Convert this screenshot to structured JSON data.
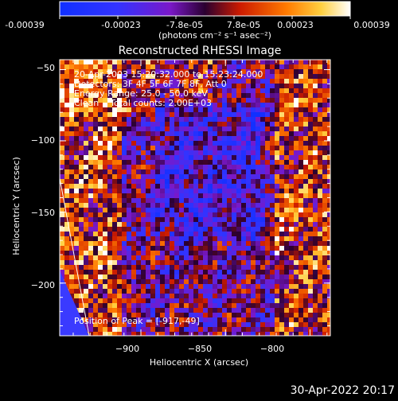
{
  "colorbar": {
    "tick_labels": [
      "-0.00039",
      "-0.00023",
      "-7.8e-05",
      "7.8e-05",
      "0.00023",
      "0.00039"
    ],
    "units_label": "(photons cm⁻² s⁻¹ asec⁻²)",
    "range": [
      -0.00039,
      0.00039
    ]
  },
  "chart_data": {
    "type": "heatmap",
    "title": "Reconstructed RHESSI Image",
    "xlabel": "Heliocentric X (arcsec)",
    "ylabel": "Heliocentric Y (arcsec)",
    "xlim": [
      -948,
      -788
    ],
    "ylim": [
      -237,
      -43
    ],
    "x_ticks": [
      -900,
      -850,
      -800
    ],
    "x_tick_labels": [
      "−900",
      "−850",
      "−800"
    ],
    "y_ticks": [
      -50,
      -100,
      -150,
      -200
    ],
    "y_tick_labels": [
      "−50",
      "−100",
      "−150",
      "−200"
    ],
    "info_lines": [
      "20-Apr-2003 15:20:32.000 to 15:23:24.000",
      "Detectors: 3F 4F 5F 6F 7F 8F, Att 0",
      "Energy Range: 25.0 - 50.0 keV",
      "Clean    Total counts: 2.00E+03"
    ],
    "peak_label": "Position of Peak = [-917,-49]",
    "limb_line": true
  },
  "footer": {
    "timestamp": "30-Apr-2022 20:17"
  },
  "colors": {
    "background": "#000000",
    "text": "#ffffff"
  }
}
